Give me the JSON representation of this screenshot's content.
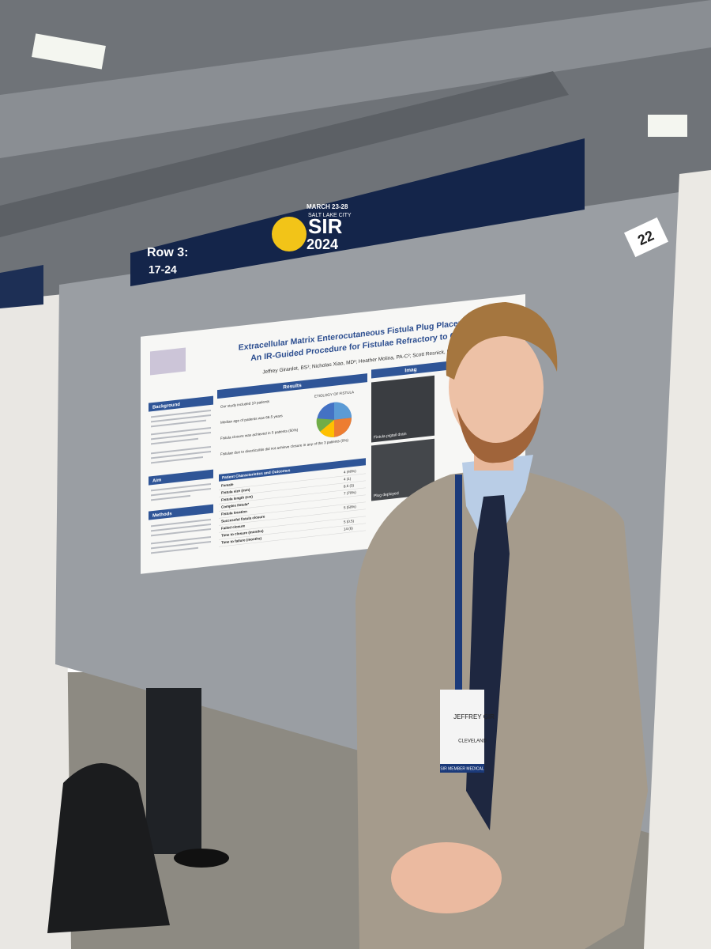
{
  "banner": {
    "dates": "MARCH 23-28",
    "city": "SALT LAKE CITY",
    "logo": "SIR",
    "year": "2024",
    "row": "Row 3:",
    "range": "17-24"
  },
  "booth_number": "22",
  "poster": {
    "title_line1": "Extracellular Matrix Enterocutaneous Fistula Plug Placement:",
    "title_line2": "An IR-Guided Procedure for Fistulae Refractory to Care",
    "authors": "Jeffrey Girardot, BS¹; Nicholas Xiao, MD²; Heather Molina, PA-C²; Scott Resnick, MD²",
    "sections": {
      "background": "Background",
      "aim": "Aim",
      "methods": "Methods",
      "results": "Results",
      "images": "Imag"
    },
    "results_bullets": [
      "Our study included 10 patients",
      "Median age of patients was 66.5 years",
      "Fistula closure was achieved in 5 patients (50%)",
      "Fistulae due to diverticulitis did not achieve closure in any of the 3 patients (0%)"
    ],
    "chart_title": "ETIOLOGY OF FISTULA",
    "table_title": "Patient Characteristics and Outcomes",
    "table_rows": [
      [
        "Female",
        "4 (40%)"
      ],
      [
        "Fistula size (mm)",
        "4 (1)"
      ],
      [
        "Fistula length (cm)",
        "8.5 (3)"
      ],
      [
        "Complex fistula*",
        "7 (70%)"
      ],
      [
        "Fistula location",
        ""
      ],
      [
        "Successful fistula closure",
        "5 (50%)"
      ],
      [
        "Failed closure",
        ""
      ],
      [
        "Time to closure (months)",
        "5 (0.5)"
      ],
      [
        "Time to failure (months)",
        "14 (6)"
      ]
    ],
    "image_captions": [
      "Fistula pigtail drain",
      "Plug deployed"
    ]
  },
  "badge": {
    "name": "JEFFREY GIR",
    "city": "CLEVELAND",
    "ribbon": "SIR MEMBER MEDICAL"
  }
}
